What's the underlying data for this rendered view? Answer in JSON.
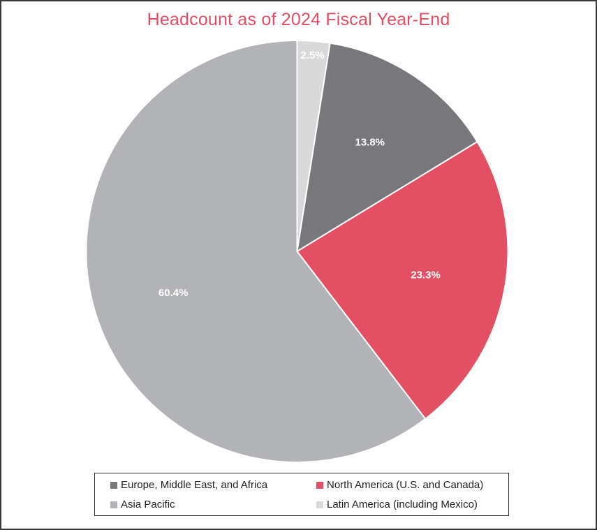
{
  "chart_data": {
    "type": "pie",
    "title": "Headcount as of 2024 Fiscal Year-End",
    "start_angle_deg": 0,
    "direction": "clockwise",
    "slices": [
      {
        "label": "Latin America (including Mexico)",
        "value": 2.5,
        "display": "2.5%",
        "color": "#d9d9da"
      },
      {
        "label": "Europe, Middle East, and Africa",
        "value": 13.8,
        "display": "13.8%",
        "color": "#78777c"
      },
      {
        "label": "North America (U.S. and Canada)",
        "value": 23.3,
        "display": "23.3%",
        "color": "#e34f63"
      },
      {
        "label": "Asia Pacific",
        "value": 60.4,
        "display": "60.4%",
        "color": "#b2b3b6"
      }
    ],
    "legend": {
      "position": "bottom",
      "entries": [
        {
          "label": "Europe, Middle East, and Africa",
          "color": "#78777c"
        },
        {
          "label": "North America (U.S. and Canada)",
          "color": "#e34f63"
        },
        {
          "label": "Asia Pacific",
          "color": "#b2b3b6"
        },
        {
          "label": "Latin America (including Mexico)",
          "color": "#d9d9da"
        }
      ]
    },
    "units": "%"
  },
  "title": "Headcount as of 2024 Fiscal Year-End",
  "legend": {
    "items": [
      {
        "label": "Europe, Middle East, and Africa",
        "color": "#78777c"
      },
      {
        "label": "North America (U.S. and Canada)",
        "color": "#e34f63"
      },
      {
        "label": "Asia Pacific",
        "color": "#b2b3b6"
      },
      {
        "label": "Latin America (including Mexico)",
        "color": "#d9d9da"
      }
    ]
  },
  "colors": {
    "title": "#e04e62",
    "border": "#3a3a3a"
  }
}
